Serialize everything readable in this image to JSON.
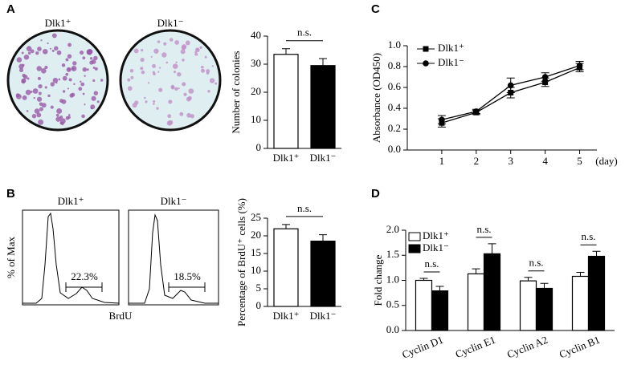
{
  "chart_data": [
    {
      "type": "bar",
      "panel_label": "A",
      "image_labels": [
        "Dlk1⁺",
        "Dlk1⁻"
      ],
      "ylabel": "Number of colonies",
      "categories": [
        "Dlk1⁺",
        "Dlk1⁻"
      ],
      "values": [
        33.5,
        29.5
      ],
      "errors": [
        2,
        2.5
      ],
      "colors": [
        "#ffffff",
        "#000000"
      ],
      "ylim": [
        0,
        40
      ],
      "yticks": [
        0,
        10,
        20,
        30,
        40
      ],
      "annotation": "n.s."
    },
    {
      "type": "line",
      "panel_label": "C",
      "ylabel": "Absorbance (OD450)",
      "xlabel": "(day)",
      "x": [
        1,
        2,
        3,
        4,
        5
      ],
      "xlim": [
        0,
        5.5
      ],
      "xticks": [
        1,
        2,
        3,
        4,
        5
      ],
      "ylim": [
        0,
        1.0
      ],
      "yticks": [
        {
          "value": 0,
          "label": "0.0"
        },
        0.2,
        0.4,
        0.6,
        0.8,
        {
          "value": 1.0,
          "label": "1.0"
        }
      ],
      "legend": "top-left",
      "series": [
        {
          "name": "Dlk1⁺",
          "marker": "square",
          "color": "#000000",
          "values": [
            0.26,
            0.36,
            0.55,
            0.65,
            0.79
          ],
          "errors": [
            0.04,
            0.02,
            0.05,
            0.04,
            0.04
          ]
        },
        {
          "name": "Dlk1⁻",
          "marker": "circle",
          "color": "#000000",
          "values": [
            0.29,
            0.37,
            0.62,
            0.7,
            0.81
          ],
          "errors": [
            0.04,
            0.02,
            0.07,
            0.04,
            0.04
          ]
        }
      ]
    },
    {
      "type": "bar",
      "panel_label": "B",
      "image_labels": [
        "Dlk1⁺",
        "Dlk1⁻"
      ],
      "gate_labels": [
        "22.3%",
        "18.5%"
      ],
      "image_xlabel": "BrdU",
      "image_ylabel": "% of Max",
      "ylabel": "Percentage of BrdU⁺ cells (%)",
      "categories": [
        "Dlk1⁺",
        "Dlk1⁻"
      ],
      "values": [
        22,
        18.5
      ],
      "errors": [
        1.2,
        1.8
      ],
      "colors": [
        "#ffffff",
        "#000000"
      ],
      "ylim": [
        0,
        25
      ],
      "yticks": [
        0,
        5,
        10,
        15,
        20,
        25
      ],
      "annotation": "n.s."
    },
    {
      "type": "grouped-bar",
      "panel_label": "D",
      "ylabel": "Fold change",
      "legend": "top-left",
      "categories": [
        "Cyclin D1",
        "Cyclin E1",
        "Cyclin A2",
        "Cyclin B1"
      ],
      "annotations": [
        "n.s.",
        "n.s.",
        "n.s.",
        "n.s."
      ],
      "ylim": [
        0,
        2.0
      ],
      "yticks": [
        {
          "value": 0,
          "label": "0.0"
        },
        0.5,
        {
          "value": 1.0,
          "label": "1.0"
        },
        1.5,
        {
          "value": 2.0,
          "label": "2.0"
        }
      ],
      "series": [
        {
          "name": "Dlk1⁺",
          "color": "#ffffff",
          "values": [
            1.0,
            1.13,
            0.99,
            1.08
          ],
          "errors": [
            0.04,
            0.1,
            0.07,
            0.08
          ]
        },
        {
          "name": "Dlk1⁻",
          "color": "#000000",
          "values": [
            0.79,
            1.53,
            0.84,
            1.48
          ],
          "errors": [
            0.09,
            0.2,
            0.1,
            0.1
          ]
        }
      ]
    }
  ]
}
